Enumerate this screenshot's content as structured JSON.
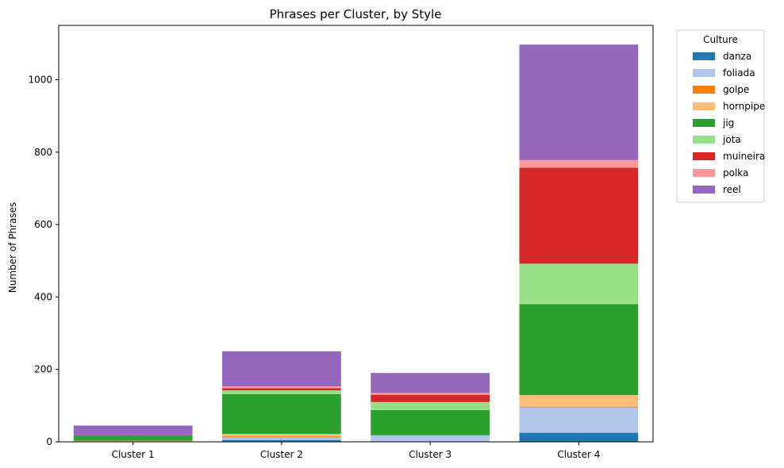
{
  "chart_data": {
    "type": "bar",
    "stacked": true,
    "title": "Phrases per Cluster, by Style",
    "xlabel": "",
    "ylabel": "Number of Phrases",
    "ylim": [
      0,
      1150
    ],
    "yticks": [
      0,
      200,
      400,
      600,
      800,
      1000
    ],
    "grid": false,
    "legend": {
      "title": "Culture",
      "placement": "outside-top-right"
    },
    "categories": [
      "Cluster 1",
      "Cluster 2",
      "Cluster 3",
      "Cluster 4"
    ],
    "series": [
      {
        "name": "danza",
        "color": "#1f77b4",
        "values": [
          0,
          5,
          0,
          25
        ]
      },
      {
        "name": "foliada",
        "color": "#aec7e8",
        "values": [
          0,
          7,
          18,
          70
        ]
      },
      {
        "name": "golpe",
        "color": "#ff7f0e",
        "values": [
          0,
          3,
          0,
          2
        ]
      },
      {
        "name": "hornpipe",
        "color": "#ffbb78",
        "values": [
          3,
          7,
          0,
          32
        ]
      },
      {
        "name": "jig",
        "color": "#2ca02c",
        "values": [
          15,
          110,
          70,
          251
        ]
      },
      {
        "name": "jota",
        "color": "#98df8a",
        "values": [
          0,
          10,
          22,
          112
        ]
      },
      {
        "name": "muineira",
        "color": "#d62728",
        "values": [
          0,
          6,
          20,
          265
        ]
      },
      {
        "name": "polka",
        "color": "#ff9896",
        "values": [
          0,
          5,
          5,
          21
        ]
      },
      {
        "name": "reel",
        "color": "#9467bd",
        "values": [
          27,
          97,
          55,
          319
        ]
      }
    ]
  }
}
